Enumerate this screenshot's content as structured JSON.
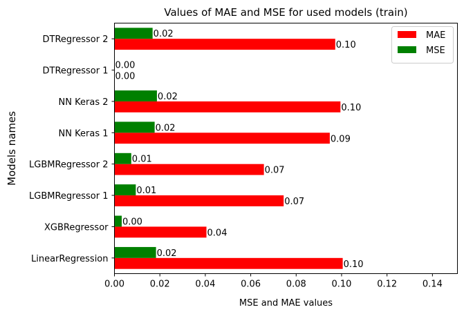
{
  "chart_data": {
    "type": "bar",
    "orientation": "horizontal",
    "title": "Values of MAE and MSE for used models (train)",
    "xlabel": "MSE and MAE values",
    "ylabel": "Models names",
    "categories": [
      "LinearRegression",
      "XGBRegressor",
      "LGBMRegressor 1",
      "LGBMRegressor 2",
      "NN Keras 1",
      "NN Keras 2",
      "DTRegressor 1",
      "DTRegressor 2"
    ],
    "series": [
      {
        "name": "MAE",
        "color": "#ff0000",
        "values": [
          0.1005,
          0.0405,
          0.0745,
          0.0658,
          0.0948,
          0.0995,
          0.0,
          0.0972
        ],
        "labels": [
          "0.10",
          "0.04",
          "0.07",
          "0.07",
          "0.09",
          "0.10",
          "0.00",
          "0.10"
        ]
      },
      {
        "name": "MSE",
        "color": "#008000",
        "values": [
          0.0183,
          0.0032,
          0.0094,
          0.0074,
          0.0177,
          0.0187,
          0.0,
          0.0168
        ],
        "labels": [
          "0.02",
          "0.00",
          "0.01",
          "0.01",
          "0.02",
          "0.02",
          "0.00",
          "0.02"
        ]
      }
    ],
    "xlim": [
      0,
      0.151
    ],
    "xticks": [
      0.0,
      0.02,
      0.04,
      0.06,
      0.08,
      0.1,
      0.12,
      0.14
    ],
    "xtick_labels": [
      "0.00",
      "0.02",
      "0.04",
      "0.06",
      "0.08",
      "0.10",
      "0.12",
      "0.14"
    ],
    "grid": false,
    "legend_position": "top-right"
  }
}
